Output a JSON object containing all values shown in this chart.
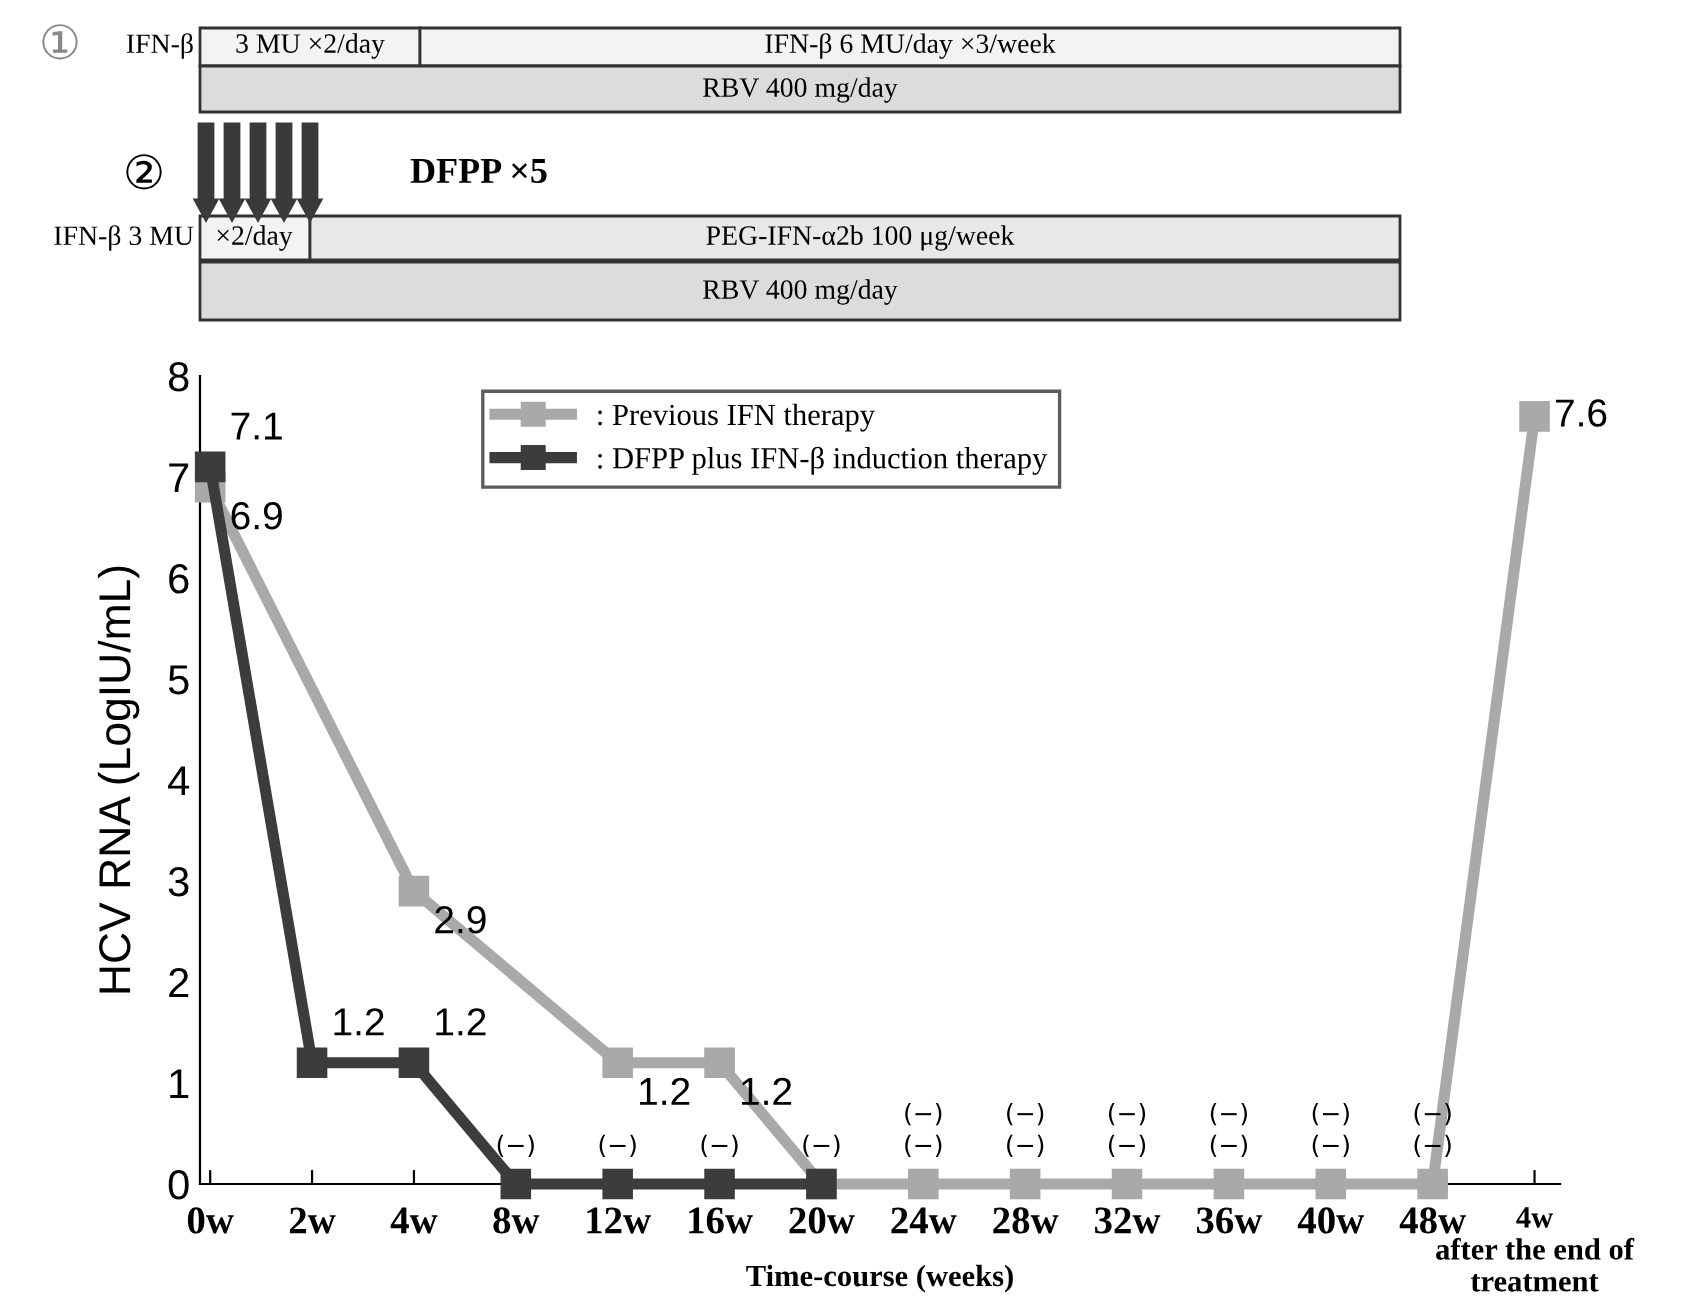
{
  "chart_data": {
    "type": "line",
    "categories": [
      "0w",
      "2w",
      "4w",
      "8w",
      "12w",
      "16w",
      "20w",
      "24w",
      "28w",
      "32w",
      "36w",
      "40w",
      "48w",
      "4w\nafter the end of\ntreatment"
    ],
    "series": [
      {
        "name": ": Previous IFN therapy",
        "color": "#a9a9a9",
        "values": [
          6.9,
          null,
          2.9,
          null,
          1.2,
          1.2,
          0,
          0,
          0,
          0,
          0,
          0,
          0,
          7.6
        ],
        "value_labels": [
          "6.9",
          null,
          "2.9",
          null,
          "1.2",
          "1.2",
          "(−)",
          "(−)\n(−)",
          "(−)\n(−)",
          "(−)\n(−)",
          "(−)\n(−)",
          "(−)\n(−)",
          "(−)\n(−)",
          "7.6"
        ]
      },
      {
        "name": ": DFPP plus IFN-β induction therapy",
        "color": "#3c3c3c",
        "values": [
          7.1,
          1.2,
          1.2,
          0,
          0,
          0,
          0,
          null,
          null,
          null,
          null,
          null,
          null,
          null
        ],
        "value_labels": [
          "7.1",
          "1.2",
          "1.2",
          "(−)",
          "(−)",
          "(−)",
          null,
          null,
          null,
          null,
          null,
          null,
          null,
          null
        ]
      }
    ],
    "xlabel": "Time-course (weeks)",
    "ylabel": "HCV RNA (LogIU/mL)",
    "ylim": [
      0,
      8
    ],
    "yticks": [
      0,
      1,
      2,
      3,
      4,
      5,
      6,
      7,
      8
    ],
    "marker": "square",
    "line_style": "solid",
    "grid": false,
    "legend": "top",
    "annotations": [
      "①",
      "IFN-β",
      "3 MU ×2/day",
      "IFN-β 6 MU/day ×3/week",
      "RBV 400 mg/day",
      "②",
      "DFPP ×5",
      "IFN-β 3 MU",
      "×2/day",
      "PEG-IFN-α2b 100 μg/week",
      "RBV 400 mg/day"
    ]
  }
}
